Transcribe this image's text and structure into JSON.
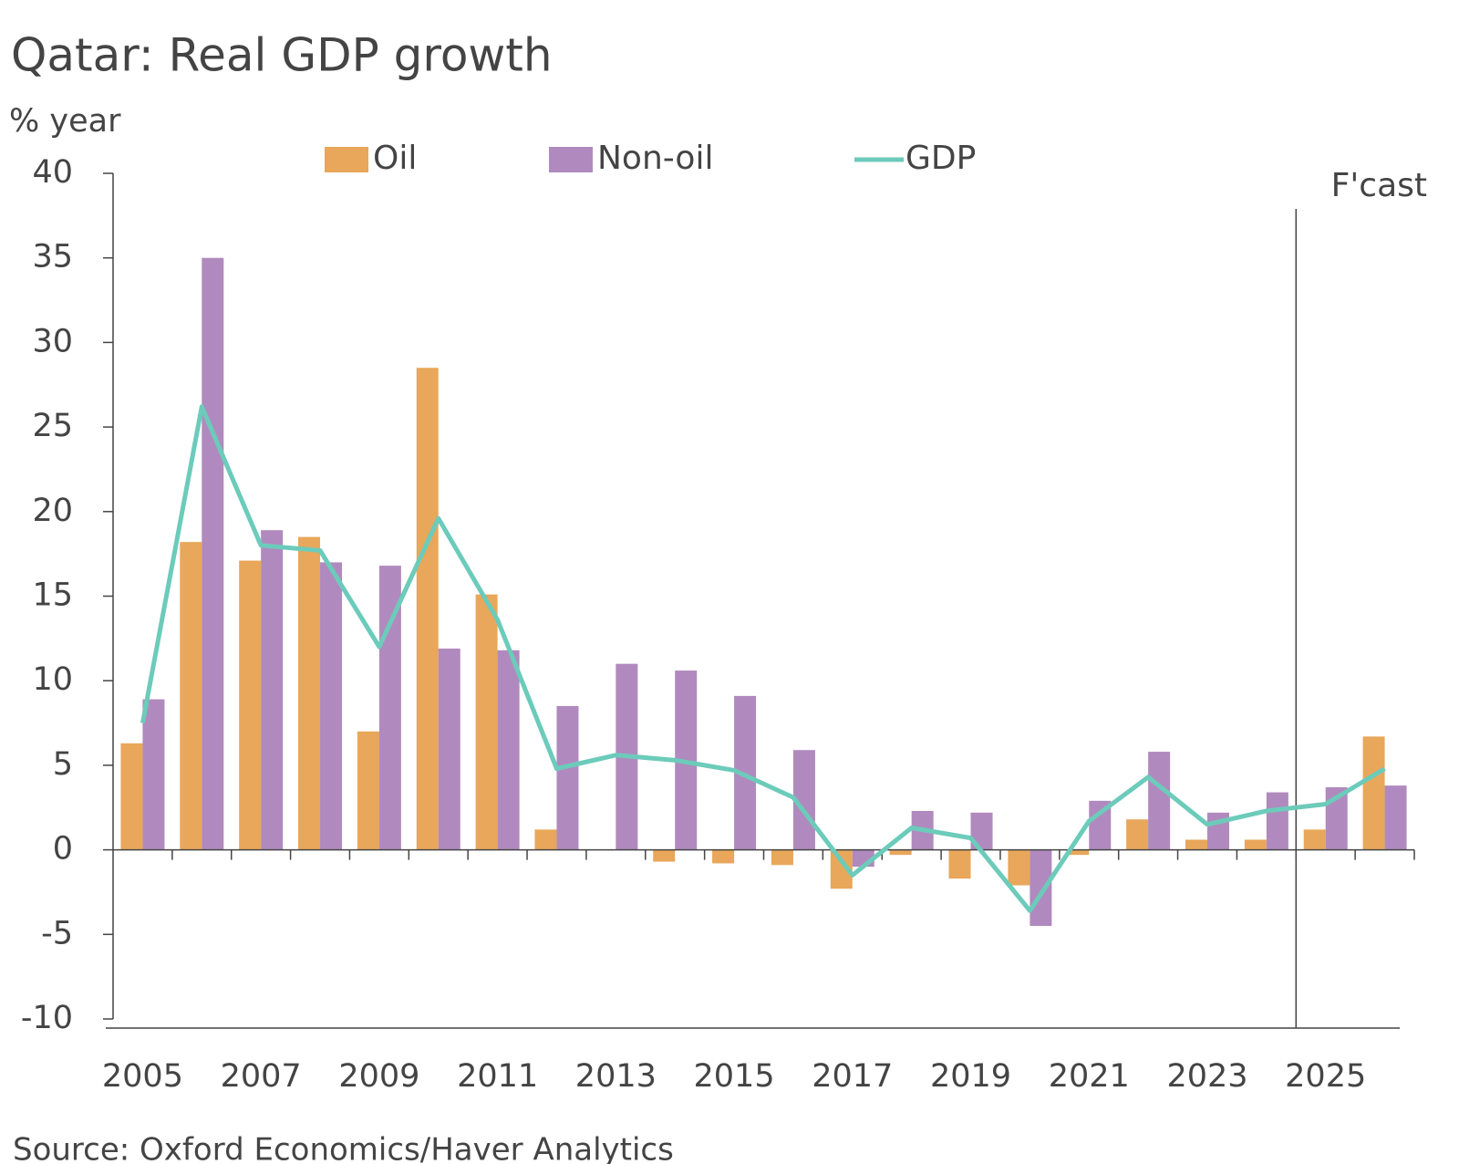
{
  "chart_data": {
    "type": "bar",
    "title": "Qatar: Real GDP growth",
    "y_label": "% year",
    "source": "Source: Oxford Economics/Haver Analytics",
    "annotation": "F'cast",
    "categories": [
      "2005",
      null,
      "2007",
      null,
      "2009",
      null,
      "2011",
      null,
      "2013",
      null,
      "2015",
      null,
      "2017",
      null,
      "2019",
      null,
      "2021",
      null,
      "2023",
      null,
      "2025",
      null
    ],
    "series": [
      {
        "name": "Oil",
        "type": "bar",
        "color": "#e8a75a",
        "values": [
          6.3,
          18.2,
          17.1,
          18.5,
          7.0,
          28.5,
          15.1,
          1.2,
          0.0,
          -0.7,
          -0.8,
          -0.9,
          -2.3,
          -0.3,
          -1.7,
          -2.1,
          -0.3,
          1.8,
          0.6,
          0.6,
          1.2,
          6.7
        ]
      },
      {
        "name": "Non-oil",
        "type": "bar",
        "color": "#b08abe",
        "values": [
          8.9,
          35.0,
          18.9,
          17.0,
          16.8,
          11.9,
          11.8,
          8.5,
          11.0,
          10.6,
          9.1,
          5.9,
          -1.0,
          2.3,
          2.2,
          -4.5,
          2.9,
          5.8,
          2.2,
          3.4,
          3.7,
          3.8
        ]
      },
      {
        "name": "GDP",
        "type": "line",
        "color": "#6ccbba",
        "values": [
          7.5,
          26.2,
          18.0,
          17.7,
          12.0,
          19.6,
          13.6,
          4.8,
          5.6,
          5.3,
          4.7,
          3.1,
          -1.5,
          1.3,
          0.7,
          -3.6,
          1.7,
          4.3,
          1.5,
          2.3,
          2.7,
          4.8
        ]
      }
    ],
    "ylim": [
      -10,
      40
    ],
    "yticks": [
      -10,
      -5,
      0,
      5,
      10,
      15,
      20,
      25,
      30,
      35,
      40
    ],
    "grid": false
  }
}
